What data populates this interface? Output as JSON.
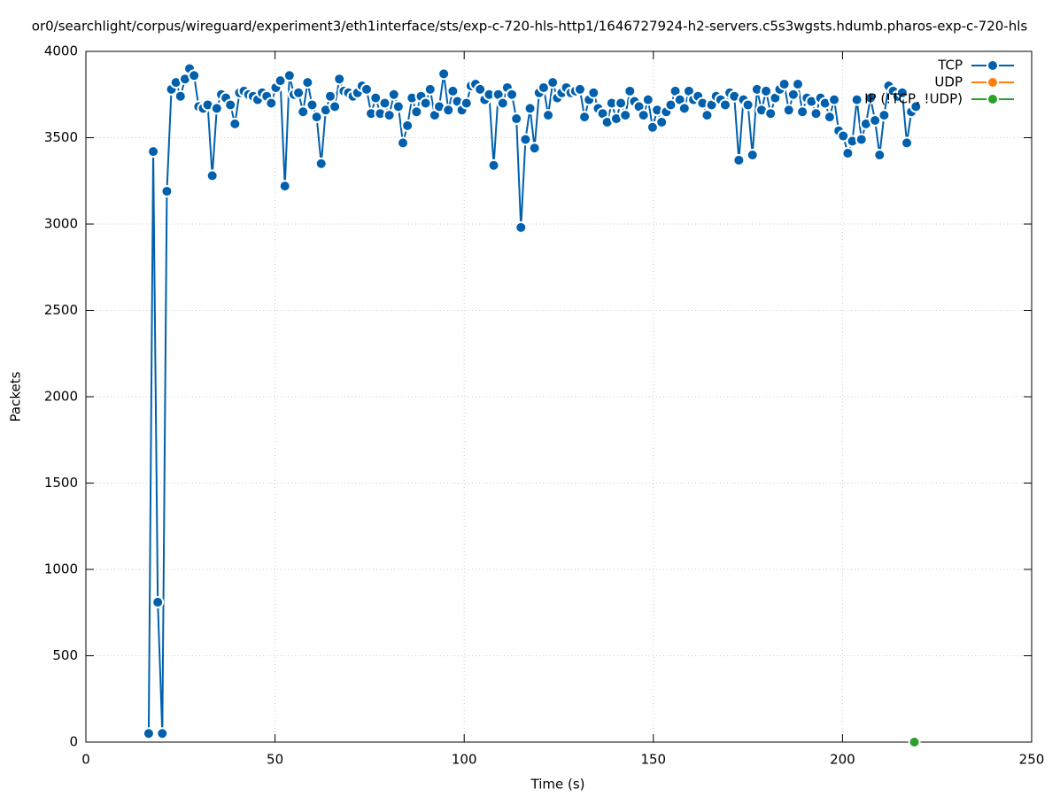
{
  "chart_data": {
    "type": "line",
    "title": "or0/searchlight/corpus/wireguard/experiment3/eth1interface/sts/exp-c-720-hls-http1/1646727924-h2-servers.c5s3wgsts.hdumb.pharos-exp-c-720-hls",
    "x_label": "Time (s)",
    "y_label": "Packets",
    "xlim": [
      0,
      250
    ],
    "xticks": [
      0,
      50,
      100,
      150,
      200,
      250
    ],
    "ylim": [
      0,
      4000
    ],
    "yticks": [
      0,
      500,
      1000,
      1500,
      2000,
      2500,
      3000,
      3500,
      4000
    ],
    "grid": true,
    "legend": "top-right",
    "series": [
      {
        "name": "TCP",
        "color": "#0060ad",
        "x": [
          16.6,
          17.8,
          19,
          20.2,
          21.4,
          22.6,
          23.8,
          25,
          26.2,
          27.4,
          28.6,
          29.8,
          31,
          32.2,
          33.4,
          34.6,
          35.8,
          37,
          38.2,
          39.4,
          40.6,
          41.8,
          43,
          44.2,
          45.4,
          46.6,
          47.8,
          49,
          50.2,
          51.4,
          52.6,
          53.8,
          55,
          56.2,
          57.4,
          58.6,
          59.8,
          61,
          62.2,
          63.4,
          64.6,
          65.8,
          67,
          68.2,
          69.4,
          70.6,
          71.8,
          73,
          74.2,
          75.4,
          76.6,
          77.8,
          79,
          80.2,
          81.4,
          82.6,
          83.8,
          85,
          86.2,
          87.4,
          88.6,
          89.8,
          91,
          92.2,
          93.4,
          94.6,
          95.8,
          97,
          98.2,
          99.4,
          100.6,
          101.8,
          103,
          104.2,
          105.4,
          106.6,
          107.8,
          109,
          110.2,
          111.4,
          112.6,
          113.8,
          115,
          116.2,
          117.4,
          118.6,
          119.8,
          121,
          122.2,
          123.4,
          124.6,
          125.8,
          127,
          128.2,
          129.4,
          130.6,
          131.8,
          133,
          134.2,
          135.4,
          136.6,
          137.8,
          139,
          140.2,
          141.4,
          142.6,
          143.8,
          145,
          146.2,
          147.4,
          148.6,
          149.8,
          151,
          152.2,
          153.4,
          154.6,
          155.8,
          157,
          158.2,
          159.4,
          160.6,
          161.8,
          163,
          164.2,
          165.4,
          166.6,
          167.8,
          169,
          170.2,
          171.4,
          172.6,
          173.8,
          175,
          176.2,
          177.4,
          178.6,
          179.8,
          181,
          182.2,
          183.4,
          184.6,
          185.8,
          187,
          188.2,
          189.4,
          190.6,
          191.8,
          193,
          194.2,
          195.4,
          196.6,
          197.8,
          199,
          200.2,
          201.4,
          202.6,
          203.8,
          205,
          206.2,
          207.4,
          208.6,
          209.8,
          211,
          212.2,
          213.4,
          214.6,
          215.8,
          217,
          218.2,
          219.4
        ],
        "values": [
          50,
          3420,
          810,
          50,
          3190,
          3780,
          3820,
          3740,
          3840,
          3900,
          3860,
          3680,
          3670,
          3690,
          3280,
          3670,
          3750,
          3730,
          3690,
          3580,
          3760,
          3770,
          3750,
          3740,
          3720,
          3760,
          3740,
          3700,
          3790,
          3830,
          3220,
          3860,
          3750,
          3760,
          3650,
          3820,
          3690,
          3620,
          3350,
          3660,
          3740,
          3680,
          3840,
          3770,
          3760,
          3740,
          3760,
          3800,
          3780,
          3640,
          3730,
          3640,
          3700,
          3630,
          3750,
          3680,
          3470,
          3570,
          3730,
          3650,
          3740,
          3700,
          3780,
          3630,
          3680,
          3870,
          3660,
          3770,
          3710,
          3660,
          3700,
          3800,
          3810,
          3780,
          3720,
          3750,
          3340,
          3750,
          3700,
          3790,
          3750,
          3610,
          2980,
          3490,
          3670,
          3440,
          3760,
          3790,
          3630,
          3820,
          3730,
          3760,
          3790,
          3760,
          3770,
          3780,
          3620,
          3720,
          3760,
          3670,
          3640,
          3590,
          3700,
          3610,
          3700,
          3630,
          3770,
          3710,
          3680,
          3630,
          3720,
          3560,
          3660,
          3590,
          3650,
          3690,
          3770,
          3720,
          3670,
          3770,
          3720,
          3740,
          3700,
          3630,
          3690,
          3740,
          3720,
          3690,
          3760,
          3740,
          3370,
          3720,
          3690,
          3400,
          3780,
          3660,
          3770,
          3640,
          3730,
          3780,
          3810,
          3660,
          3750,
          3810,
          3650,
          3730,
          3710,
          3640,
          3730,
          3700,
          3620,
          3720,
          3540,
          3510,
          3410,
          3480,
          3720,
          3490,
          3580,
          3730,
          3600,
          3400,
          3630,
          3800,
          3770,
          3740,
          3760,
          3470,
          3650,
          3680
        ]
      },
      {
        "name": "UDP",
        "color": "#ff7f0e",
        "x": [],
        "values": []
      },
      {
        "name": "IP (!TCP, !UDP)",
        "color": "#2ca02c",
        "x": [
          219
        ],
        "values": [
          0
        ]
      }
    ]
  }
}
